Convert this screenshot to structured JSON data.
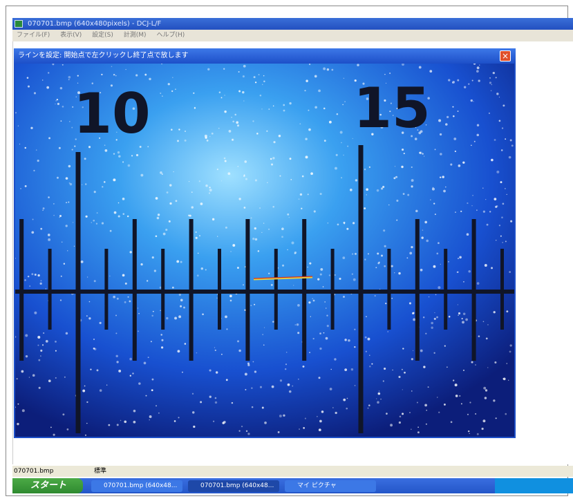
{
  "window": {
    "title": "070701.bmp (640x480pixels) - DCJ-L/F",
    "menu": [
      "ファイル(F)",
      "表示(V)",
      "設定(S)",
      "計測(M)",
      "ヘルプ(H)"
    ]
  },
  "dialog": {
    "title": "ラインを設定: 開始点で左クリックし終了点で放します",
    "image_labels": [
      "10",
      "15"
    ]
  },
  "status_bar": [
    "070701.bmp",
    "標準"
  ],
  "taskbar": {
    "start": "スタート",
    "items": [
      "070701.bmp (640x48...",
      "070701.bmp (640x48...",
      "マイ ピクチャ"
    ]
  }
}
